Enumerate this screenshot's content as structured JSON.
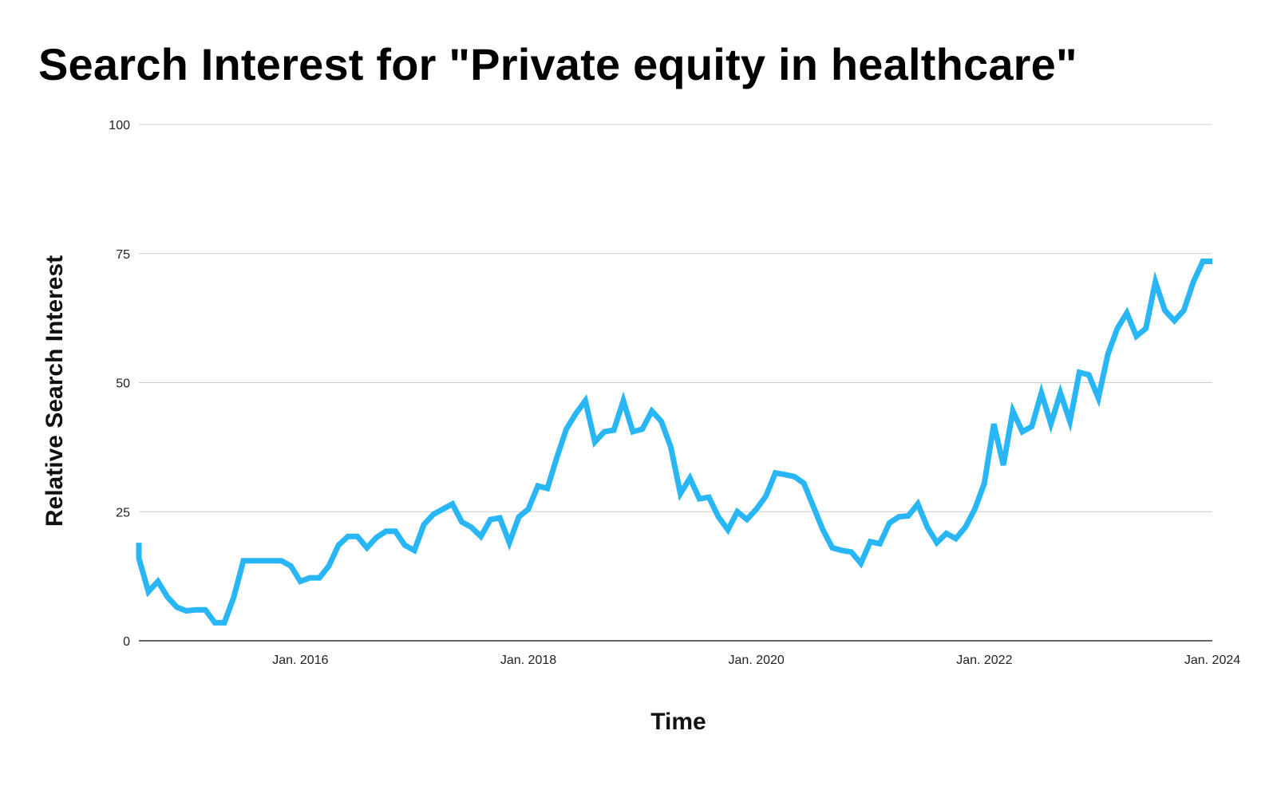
{
  "chart_data": {
    "type": "line",
    "title": "Search Interest for \"Private equity in healthcare\"",
    "xlabel": "Time",
    "ylabel": "Relative Search Interest",
    "ylim": [
      0,
      100
    ],
    "yticks": [
      0,
      25,
      50,
      75,
      100
    ],
    "xlim": [
      "2014-08",
      "2024-01"
    ],
    "xticks": [
      {
        "date": "2016-01",
        "label": "Jan. 2016"
      },
      {
        "date": "2018-01",
        "label": "Jan. 2018"
      },
      {
        "date": "2020-01",
        "label": "Jan. 2020"
      },
      {
        "date": "2022-01",
        "label": "Jan. 2022"
      },
      {
        "date": "2024-01",
        "label": "Jan. 2024"
      }
    ],
    "grid": true,
    "legend": "none",
    "colors": {
      "line": "#29b6f6",
      "grid": "#cccccc",
      "axis": "#333333"
    },
    "series": [
      {
        "x": [
          "2014-08",
          "2014-08",
          "2014-09",
          "2014-10",
          "2014-11",
          "2014-12",
          "2015-01",
          "2015-02",
          "2015-03",
          "2015-04",
          "2015-05",
          "2015-06",
          "2015-07",
          "2015-08",
          "2015-09",
          "2015-10",
          "2015-11",
          "2015-12",
          "2016-01",
          "2016-02",
          "2016-03",
          "2016-04",
          "2016-05",
          "2016-06",
          "2016-07",
          "2016-08",
          "2016-09",
          "2016-10",
          "2016-11",
          "2016-12",
          "2017-01",
          "2017-02",
          "2017-03",
          "2017-04",
          "2017-05",
          "2017-06",
          "2017-07",
          "2017-08",
          "2017-09",
          "2017-10",
          "2017-11",
          "2017-12",
          "2018-01",
          "2018-02",
          "2018-03",
          "2018-04",
          "2018-05",
          "2018-06",
          "2018-07",
          "2018-08",
          "2018-09",
          "2018-10",
          "2018-11",
          "2018-12",
          "2019-01",
          "2019-02",
          "2019-03",
          "2019-04",
          "2019-05",
          "2019-06",
          "2019-07",
          "2019-08",
          "2019-09",
          "2019-10",
          "2019-11",
          "2019-12",
          "2020-01",
          "2020-02",
          "2020-03",
          "2020-04",
          "2020-05",
          "2020-06",
          "2020-07",
          "2020-08",
          "2020-09",
          "2020-10",
          "2020-11",
          "2020-12",
          "2021-01",
          "2021-02",
          "2021-03",
          "2021-04",
          "2021-05",
          "2021-06",
          "2021-07",
          "2021-08",
          "2021-09",
          "2021-10",
          "2021-11",
          "2021-12",
          "2022-01",
          "2022-02",
          "2022-03",
          "2022-04",
          "2022-05",
          "2022-06",
          "2022-07",
          "2022-08",
          "2022-09",
          "2022-10",
          "2022-11",
          "2022-12",
          "2023-01",
          "2023-02",
          "2023-03",
          "2023-04",
          "2023-05",
          "2023-06",
          "2023-07",
          "2023-08",
          "2023-09",
          "2023-10",
          "2023-11",
          "2023-12",
          "2024-01"
        ],
        "y": [
          19,
          16,
          9.5,
          11.5,
          8.5,
          6.5,
          5.8,
          6,
          6,
          3.5,
          3.5,
          8.5,
          15.5,
          15.5,
          15.5,
          15.5,
          15.5,
          14.5,
          11.5,
          12.2,
          12.2,
          14.5,
          18.5,
          20.2,
          20.2,
          18,
          20,
          21.2,
          21.2,
          18.5,
          17.5,
          22.5,
          24.5,
          25.5,
          26.5,
          23,
          22,
          20.2,
          23.5,
          23.8,
          19,
          24,
          25.5,
          30,
          29.5,
          35.5,
          41,
          44,
          46.5,
          38.5,
          40.5,
          40.8,
          46.5,
          40.5,
          41,
          44.5,
          42.5,
          37.5,
          28.5,
          31.5,
          27.5,
          27.8,
          24,
          21.5,
          25,
          23.5,
          25.5,
          28,
          32.5,
          32.2,
          31.8,
          30.5,
          26,
          21.5,
          18,
          17.5,
          17.2,
          15,
          19.2,
          18.8,
          22.8,
          24,
          24.2,
          26.5,
          22,
          19,
          20.8,
          19.8,
          22,
          25.5,
          30.5,
          42,
          34,
          44.5,
          40.5,
          41.5,
          48,
          42,
          48,
          42.5,
          52,
          51.5,
          47,
          55.5,
          60.5,
          63.5,
          59,
          60.5,
          69.5,
          64,
          62,
          64,
          69.5,
          73.5,
          73.5
        ]
      }
    ]
  }
}
